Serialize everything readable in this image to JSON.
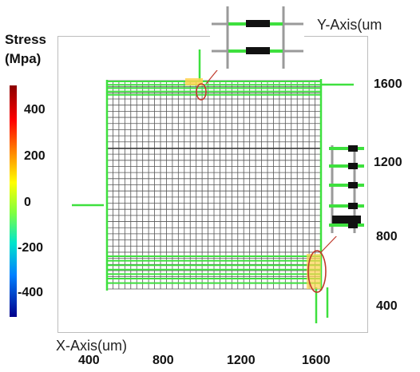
{
  "colorbar": {
    "title_line1": "Stress",
    "title_line2": "(Mpa)",
    "ticks": [
      "400",
      "200",
      "0",
      "-200",
      "-400"
    ],
    "colors": [
      "#8b0000",
      "#ff0000",
      "#ff7f00",
      "#ffff00",
      "#7fff3f",
      "#00e5cc",
      "#0080ff",
      "#00008b"
    ]
  },
  "axes": {
    "x_title": "X-Axis(um)",
    "y_title": "Y-Axis(um",
    "x_ticks": [
      "400",
      "800",
      "1200",
      "1600"
    ],
    "y_ticks": [
      "1600",
      "1200",
      "800",
      "400"
    ]
  },
  "colors": {
    "grid": "#555555",
    "stressed_line": "#3ee03e",
    "hotspot": "#ffd34d",
    "highlight_circle": "#c0392b"
  }
}
